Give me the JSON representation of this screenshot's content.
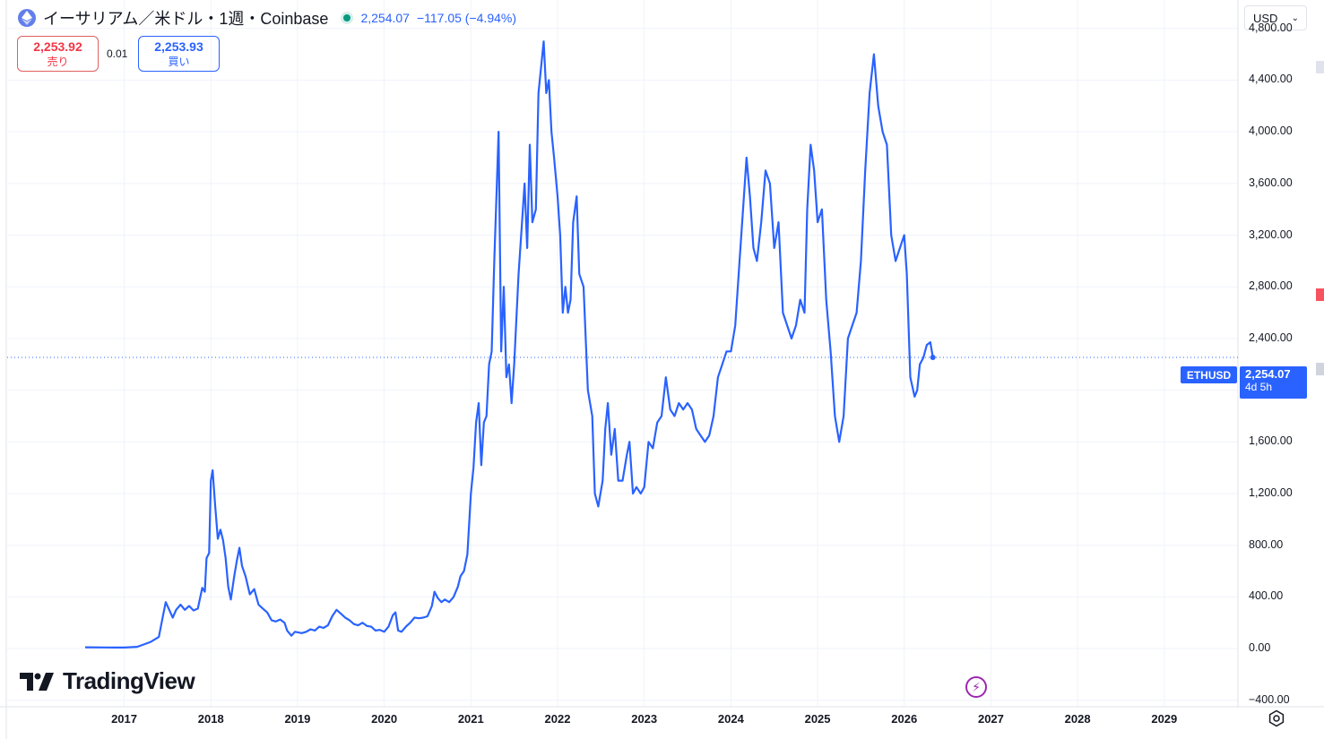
{
  "header": {
    "symbol_title": "イーサリアム／米ドル・1週・Coinbase",
    "last_price": "2,254.07",
    "change": "−117.05 (−4.94%)",
    "status_color": "#089981"
  },
  "bid_ask": {
    "sell_value": "2,253.92",
    "sell_label": "売り",
    "spread": "0.01",
    "buy_value": "2,253.93",
    "buy_label": "買い"
  },
  "currency_select": {
    "value": "USD"
  },
  "price_tag": {
    "symbol": "ETHUSD",
    "price": "2,254.07",
    "countdown": "4d 5h"
  },
  "logo": {
    "text": "TradingView"
  },
  "icons": {
    "asset": "ethereum-icon",
    "flash": "lightning-icon",
    "settings": "gear-icon"
  },
  "colors": {
    "line": "#2962ff",
    "grid": "#f0f3fa",
    "sell": "#f23645",
    "buy": "#2962ff"
  },
  "chart_data": {
    "type": "line",
    "y_ticks": [
      "4,800.00",
      "4,400.00",
      "4,000.00",
      "3,600.00",
      "3,200.00",
      "2,800.00",
      "2,400.00",
      "2,000.00",
      "1,600.00",
      "1,200.00",
      "800.00",
      "400.00",
      "0.00",
      "−400.00"
    ],
    "y_tick_values": [
      4800,
      4400,
      4000,
      3600,
      3200,
      2800,
      2400,
      2000,
      1600,
      1200,
      800,
      400,
      0,
      -400
    ],
    "x_ticks": [
      "2017",
      "2018",
      "2019",
      "2020",
      "2021",
      "2022",
      "2023",
      "2024",
      "2025",
      "2026",
      "2027",
      "2028",
      "2029"
    ],
    "x_tick_values": [
      2017,
      2018,
      2019,
      2020,
      2021,
      2022,
      2023,
      2024,
      2025,
      2026,
      2027,
      2028,
      2029
    ],
    "xlim": [
      2015.65,
      2029.85
    ],
    "ylim": [
      -450,
      5020
    ],
    "current_value": 2254.07,
    "series": [
      {
        "points": [
          [
            2016.55,
            10
          ],
          [
            2016.8,
            9
          ],
          [
            2017.0,
            8
          ],
          [
            2017.15,
            14
          ],
          [
            2017.3,
            50
          ],
          [
            2017.4,
            90
          ],
          [
            2017.45,
            260
          ],
          [
            2017.48,
            360
          ],
          [
            2017.52,
            300
          ],
          [
            2017.56,
            240
          ],
          [
            2017.6,
            300
          ],
          [
            2017.65,
            340
          ],
          [
            2017.7,
            300
          ],
          [
            2017.75,
            330
          ],
          [
            2017.8,
            295
          ],
          [
            2017.85,
            310
          ],
          [
            2017.9,
            470
          ],
          [
            2017.93,
            440
          ],
          [
            2017.95,
            700
          ],
          [
            2017.98,
            740
          ],
          [
            2018.0,
            1300
          ],
          [
            2018.02,
            1380
          ],
          [
            2018.05,
            1100
          ],
          [
            2018.08,
            850
          ],
          [
            2018.11,
            920
          ],
          [
            2018.14,
            840
          ],
          [
            2018.17,
            700
          ],
          [
            2018.2,
            480
          ],
          [
            2018.23,
            380
          ],
          [
            2018.27,
            560
          ],
          [
            2018.3,
            680
          ],
          [
            2018.33,
            780
          ],
          [
            2018.36,
            640
          ],
          [
            2018.4,
            560
          ],
          [
            2018.45,
            420
          ],
          [
            2018.5,
            460
          ],
          [
            2018.55,
            340
          ],
          [
            2018.6,
            310
          ],
          [
            2018.65,
            280
          ],
          [
            2018.7,
            220
          ],
          [
            2018.75,
            210
          ],
          [
            2018.8,
            225
          ],
          [
            2018.85,
            200
          ],
          [
            2018.88,
            140
          ],
          [
            2018.93,
            100
          ],
          [
            2018.97,
            130
          ],
          [
            2019.05,
            120
          ],
          [
            2019.1,
            130
          ],
          [
            2019.15,
            150
          ],
          [
            2019.2,
            140
          ],
          [
            2019.25,
            170
          ],
          [
            2019.3,
            160
          ],
          [
            2019.35,
            180
          ],
          [
            2019.4,
            250
          ],
          [
            2019.45,
            300
          ],
          [
            2019.5,
            270
          ],
          [
            2019.55,
            240
          ],
          [
            2019.6,
            220
          ],
          [
            2019.65,
            190
          ],
          [
            2019.7,
            180
          ],
          [
            2019.75,
            200
          ],
          [
            2019.8,
            175
          ],
          [
            2019.85,
            170
          ],
          [
            2019.9,
            140
          ],
          [
            2019.95,
            145
          ],
          [
            2020.0,
            130
          ],
          [
            2020.05,
            170
          ],
          [
            2020.1,
            260
          ],
          [
            2020.13,
            280
          ],
          [
            2020.16,
            140
          ],
          [
            2020.2,
            130
          ],
          [
            2020.25,
            170
          ],
          [
            2020.3,
            200
          ],
          [
            2020.35,
            240
          ],
          [
            2020.4,
            235
          ],
          [
            2020.45,
            240
          ],
          [
            2020.5,
            250
          ],
          [
            2020.55,
            330
          ],
          [
            2020.58,
            440
          ],
          [
            2020.62,
            390
          ],
          [
            2020.66,
            360
          ],
          [
            2020.7,
            380
          ],
          [
            2020.75,
            360
          ],
          [
            2020.8,
            400
          ],
          [
            2020.85,
            480
          ],
          [
            2020.88,
            560
          ],
          [
            2020.92,
            600
          ],
          [
            2020.96,
            730
          ],
          [
            2021.0,
            1200
          ],
          [
            2021.03,
            1400
          ],
          [
            2021.06,
            1750
          ],
          [
            2021.09,
            1900
          ],
          [
            2021.12,
            1420
          ],
          [
            2021.15,
            1750
          ],
          [
            2021.18,
            1800
          ],
          [
            2021.21,
            2200
          ],
          [
            2021.24,
            2300
          ],
          [
            2021.27,
            3000
          ],
          [
            2021.3,
            3600
          ],
          [
            2021.32,
            4000
          ],
          [
            2021.35,
            2300
          ],
          [
            2021.38,
            2800
          ],
          [
            2021.41,
            2100
          ],
          [
            2021.44,
            2200
          ],
          [
            2021.47,
            1900
          ],
          [
            2021.5,
            2200
          ],
          [
            2021.55,
            2900
          ],
          [
            2021.58,
            3200
          ],
          [
            2021.62,
            3600
          ],
          [
            2021.65,
            3100
          ],
          [
            2021.68,
            3900
          ],
          [
            2021.71,
            3300
          ],
          [
            2021.75,
            3400
          ],
          [
            2021.78,
            4300
          ],
          [
            2021.81,
            4500
          ],
          [
            2021.84,
            4700
          ],
          [
            2021.87,
            4300
          ],
          [
            2021.9,
            4400
          ],
          [
            2021.93,
            4000
          ],
          [
            2021.96,
            3800
          ],
          [
            2022.0,
            3500
          ],
          [
            2022.03,
            3200
          ],
          [
            2022.06,
            2600
          ],
          [
            2022.09,
            2800
          ],
          [
            2022.12,
            2600
          ],
          [
            2022.15,
            2700
          ],
          [
            2022.18,
            3300
          ],
          [
            2022.22,
            3500
          ],
          [
            2022.25,
            2900
          ],
          [
            2022.3,
            2800
          ],
          [
            2022.35,
            2000
          ],
          [
            2022.4,
            1800
          ],
          [
            2022.43,
            1200
          ],
          [
            2022.47,
            1100
          ],
          [
            2022.52,
            1300
          ],
          [
            2022.55,
            1700
          ],
          [
            2022.58,
            1900
          ],
          [
            2022.62,
            1500
          ],
          [
            2022.66,
            1700
          ],
          [
            2022.7,
            1300
          ],
          [
            2022.75,
            1300
          ],
          [
            2022.8,
            1500
          ],
          [
            2022.83,
            1600
          ],
          [
            2022.87,
            1200
          ],
          [
            2022.91,
            1250
          ],
          [
            2022.96,
            1200
          ],
          [
            2023.0,
            1250
          ],
          [
            2023.05,
            1600
          ],
          [
            2023.1,
            1550
          ],
          [
            2023.15,
            1750
          ],
          [
            2023.2,
            1800
          ],
          [
            2023.25,
            2100
          ],
          [
            2023.3,
            1850
          ],
          [
            2023.35,
            1800
          ],
          [
            2023.4,
            1900
          ],
          [
            2023.45,
            1850
          ],
          [
            2023.5,
            1900
          ],
          [
            2023.55,
            1850
          ],
          [
            2023.6,
            1700
          ],
          [
            2023.65,
            1650
          ],
          [
            2023.7,
            1600
          ],
          [
            2023.75,
            1650
          ],
          [
            2023.8,
            1800
          ],
          [
            2023.85,
            2100
          ],
          [
            2023.9,
            2200
          ],
          [
            2023.95,
            2300
          ],
          [
            2024.0,
            2300
          ],
          [
            2024.05,
            2500
          ],
          [
            2024.1,
            3000
          ],
          [
            2024.15,
            3500
          ],
          [
            2024.18,
            3800
          ],
          [
            2024.22,
            3500
          ],
          [
            2024.26,
            3100
          ],
          [
            2024.3,
            3000
          ],
          [
            2024.35,
            3300
          ],
          [
            2024.4,
            3700
          ],
          [
            2024.45,
            3600
          ],
          [
            2024.5,
            3100
          ],
          [
            2024.55,
            3300
          ],
          [
            2024.6,
            2600
          ],
          [
            2024.65,
            2500
          ],
          [
            2024.7,
            2400
          ],
          [
            2024.75,
            2500
          ],
          [
            2024.8,
            2700
          ],
          [
            2024.85,
            2600
          ],
          [
            2024.88,
            3400
          ],
          [
            2024.92,
            3900
          ],
          [
            2024.96,
            3700
          ],
          [
            2025.0,
            3300
          ],
          [
            2025.05,
            3400
          ],
          [
            2025.1,
            2700
          ],
          [
            2025.15,
            2300
          ],
          [
            2025.2,
            1800
          ],
          [
            2025.25,
            1600
          ],
          [
            2025.3,
            1800
          ],
          [
            2025.35,
            2400
          ],
          [
            2025.4,
            2500
          ],
          [
            2025.45,
            2600
          ],
          [
            2025.5,
            3000
          ],
          [
            2025.55,
            3700
          ],
          [
            2025.6,
            4300
          ],
          [
            2025.65,
            4600
          ],
          [
            2025.7,
            4200
          ],
          [
            2025.75,
            4000
          ],
          [
            2025.8,
            3900
          ],
          [
            2025.85,
            3200
          ],
          [
            2025.9,
            3000
          ],
          [
            2025.95,
            3100
          ],
          [
            2026.0,
            3200
          ],
          [
            2026.03,
            2900
          ],
          [
            2026.07,
            2100
          ],
          [
            2026.12,
            1950
          ],
          [
            2026.15,
            2000
          ],
          [
            2026.18,
            2200
          ],
          [
            2026.22,
            2250
          ],
          [
            2026.26,
            2350
          ],
          [
            2026.3,
            2371
          ],
          [
            2026.33,
            2254.07
          ]
        ]
      }
    ]
  }
}
